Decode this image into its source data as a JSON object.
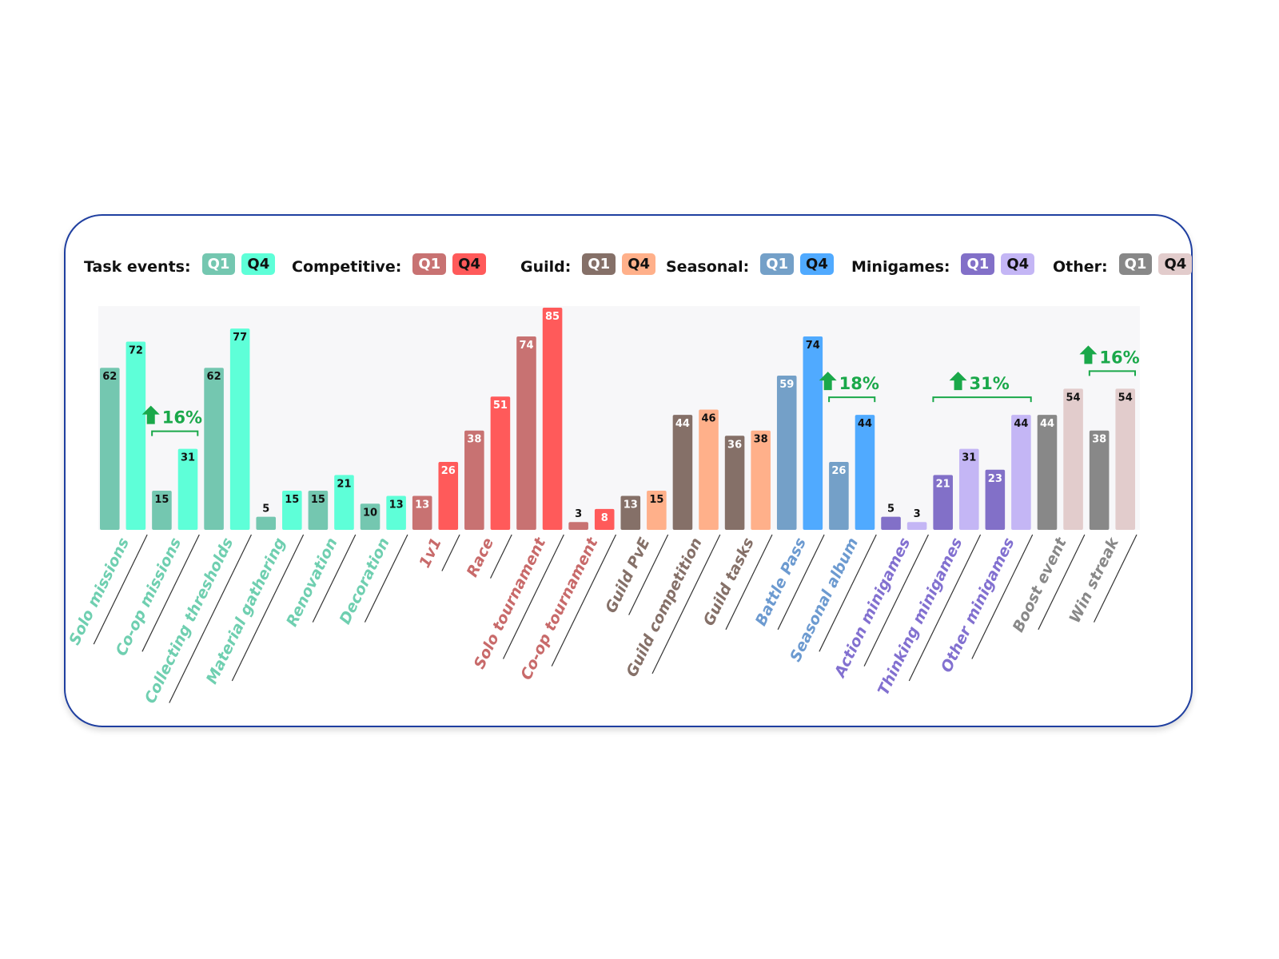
{
  "chart_data": {
    "type": "bar",
    "grid": false,
    "ylim": [
      0,
      85
    ],
    "quarters": [
      "Q1",
      "Q4"
    ],
    "groups": [
      {
        "name": "Task events:",
        "colors": [
          "#74c7b0",
          "#5effd8"
        ],
        "label_color": "#6fcfb0",
        "value_text": [
          "#111",
          "#111"
        ],
        "categories": [
          {
            "name": "Solo missions",
            "values": [
              62,
              72
            ]
          },
          {
            "name": "Co-op missions",
            "values": [
              15,
              31
            ]
          },
          {
            "name": "Collecting thresholds",
            "values": [
              62,
              77
            ]
          },
          {
            "name": "Material gathering",
            "values": [
              5,
              15
            ]
          },
          {
            "name": "Renovation",
            "values": [
              15,
              21
            ]
          },
          {
            "name": "Decoration",
            "values": [
              10,
              13
            ]
          }
        ]
      },
      {
        "name": "Competitive:",
        "colors": [
          "#c87272",
          "#ff5a5a"
        ],
        "label_color": "#c86a6a",
        "value_text": [
          "#fff",
          "#fff"
        ],
        "categories": [
          {
            "name": "1v1",
            "values": [
              13,
              26
            ]
          },
          {
            "name": "Race",
            "values": [
              38,
              51
            ]
          },
          {
            "name": "Solo tournament",
            "values": [
              74,
              85
            ]
          },
          {
            "name": "Co-op tournament",
            "values": [
              3,
              8
            ]
          }
        ]
      },
      {
        "name": "Guild:",
        "colors": [
          "#857068",
          "#ffb08a"
        ],
        "label_color": "#857068",
        "value_text": [
          "#fff",
          "#111"
        ],
        "categories": [
          {
            "name": "Guild PvE",
            "values": [
              13,
              15
            ]
          },
          {
            "name": "Guild competition",
            "values": [
              44,
              46
            ]
          },
          {
            "name": "Guild tasks",
            "values": [
              36,
              38
            ]
          }
        ]
      },
      {
        "name": "Seasonal:",
        "colors": [
          "#74a0c8",
          "#50aaff"
        ],
        "label_color": "#6c9ad0",
        "value_text": [
          "#fff",
          "#111"
        ],
        "categories": [
          {
            "name": "Battle Pass",
            "values": [
              59,
              74
            ]
          },
          {
            "name": "Seasonal album",
            "values": [
              26,
              44
            ]
          }
        ]
      },
      {
        "name": "Minigames:",
        "colors": [
          "#8270c8",
          "#c4b6f5"
        ],
        "label_color": "#8270d0",
        "value_text": [
          "#fff",
          "#111"
        ],
        "categories": [
          {
            "name": "Action minigames",
            "values": [
              5,
              3
            ]
          },
          {
            "name": "Thinking minigames",
            "values": [
              21,
              31
            ]
          },
          {
            "name": "Other minigames",
            "values": [
              23,
              44
            ]
          }
        ]
      },
      {
        "name": "Other:",
        "colors": [
          "#888888",
          "#e2cccc"
        ],
        "label_color": "#888888",
        "value_text": [
          "#fff",
          "#111"
        ],
        "categories": [
          {
            "name": "Boost event",
            "values": [
              44,
              54
            ]
          },
          {
            "name": "Win streak",
            "values": [
              38,
              54
            ]
          }
        ]
      }
    ],
    "annotations": [
      {
        "text": "16%",
        "from": "Co-op missions",
        "to": "Co-op missions"
      },
      {
        "text": "18%",
        "from": "Seasonal album",
        "to": "Seasonal album"
      },
      {
        "text": "31%",
        "from": "Thinking minigames",
        "to": "Other minigames"
      },
      {
        "text": "16%",
        "from": "Win streak",
        "to": "Win streak"
      }
    ],
    "annotation_color": "#1aa84a"
  }
}
